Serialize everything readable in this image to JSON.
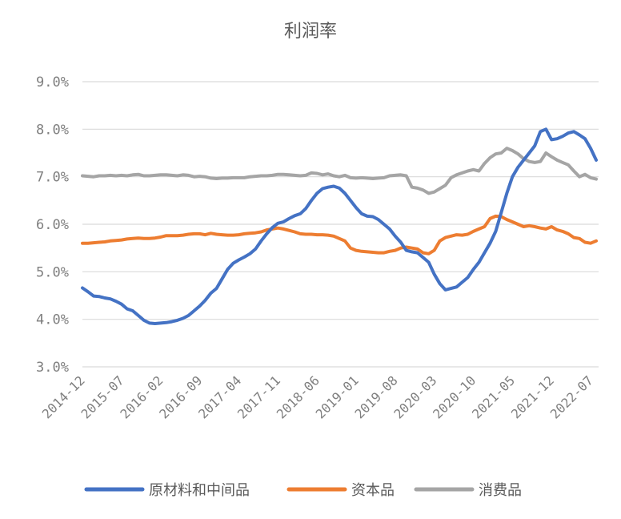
{
  "chart_data": {
    "type": "line",
    "title": "利润率",
    "xlabel": "",
    "ylabel": "",
    "ylim": [
      3.0,
      9.0
    ],
    "yticks": [
      "3.0%",
      "4.0%",
      "5.0%",
      "6.0%",
      "7.0%",
      "8.0%",
      "9.0%"
    ],
    "ytick_values": [
      3,
      4,
      5,
      6,
      7,
      8,
      9
    ],
    "grid": true,
    "legend_position": "bottom",
    "x_tick_labels": [
      "2014-12",
      "2015-07",
      "2016-02",
      "2016-09",
      "2017-04",
      "2017-11",
      "2018-06",
      "2019-01",
      "2019-08",
      "2020-03",
      "2020-10",
      "2021-05",
      "2021-12",
      "2022-07"
    ],
    "x_start": "2014-12",
    "x_end": "2022-08",
    "series": [
      {
        "name": "原材料和中间品",
        "color": "#4472C4",
        "values": [
          4.66,
          4.58,
          4.49,
          4.48,
          4.45,
          4.43,
          4.38,
          4.32,
          4.22,
          4.18,
          4.08,
          3.98,
          3.92,
          3.91,
          3.92,
          3.93,
          3.95,
          3.98,
          4.02,
          4.08,
          4.18,
          4.28,
          4.4,
          4.55,
          4.65,
          4.85,
          5.05,
          5.18,
          5.25,
          5.31,
          5.38,
          5.48,
          5.65,
          5.8,
          5.93,
          6.02,
          6.05,
          6.12,
          6.18,
          6.22,
          6.33,
          6.5,
          6.65,
          6.75,
          6.78,
          6.8,
          6.76,
          6.65,
          6.5,
          6.35,
          6.22,
          6.17,
          6.16,
          6.1,
          6.0,
          5.9,
          5.75,
          5.62,
          5.45,
          5.42,
          5.4,
          5.3,
          5.2,
          4.95,
          4.75,
          4.62,
          4.65,
          4.68,
          4.78,
          4.88,
          5.05,
          5.2,
          5.4,
          5.6,
          5.85,
          6.25,
          6.65,
          7.0,
          7.2,
          7.35,
          7.5,
          7.65,
          7.95,
          8.0,
          7.78,
          7.8,
          7.85,
          7.92,
          7.95,
          7.88,
          7.8,
          7.6,
          7.35
        ]
      },
      {
        "name": "资本品",
        "color": "#ED7D31",
        "values": [
          5.6,
          5.6,
          5.61,
          5.62,
          5.63,
          5.65,
          5.66,
          5.67,
          5.69,
          5.7,
          5.71,
          5.7,
          5.7,
          5.71,
          5.73,
          5.76,
          5.76,
          5.76,
          5.77,
          5.79,
          5.8,
          5.8,
          5.78,
          5.81,
          5.79,
          5.78,
          5.77,
          5.77,
          5.78,
          5.8,
          5.81,
          5.82,
          5.84,
          5.88,
          5.9,
          5.92,
          5.9,
          5.87,
          5.84,
          5.8,
          5.79,
          5.79,
          5.78,
          5.78,
          5.77,
          5.75,
          5.7,
          5.65,
          5.5,
          5.45,
          5.43,
          5.42,
          5.41,
          5.4,
          5.4,
          5.43,
          5.45,
          5.5,
          5.52,
          5.5,
          5.48,
          5.4,
          5.38,
          5.45,
          5.65,
          5.72,
          5.75,
          5.78,
          5.77,
          5.79,
          5.85,
          5.9,
          5.95,
          6.12,
          6.17,
          6.16,
          6.1,
          6.05,
          6.0,
          5.95,
          5.97,
          5.95,
          5.92,
          5.9,
          5.95,
          5.88,
          5.85,
          5.8,
          5.72,
          5.7,
          5.62,
          5.6,
          5.65
        ]
      },
      {
        "name": "消费品",
        "color": "#A5A5A5",
        "values": [
          7.02,
          7.01,
          7.0,
          7.02,
          7.02,
          7.03,
          7.02,
          7.03,
          7.02,
          7.04,
          7.05,
          7.02,
          7.02,
          7.03,
          7.04,
          7.04,
          7.03,
          7.02,
          7.04,
          7.03,
          7.0,
          7.01,
          7.0,
          6.97,
          6.96,
          6.97,
          6.97,
          6.98,
          6.98,
          6.98,
          7.0,
          7.01,
          7.02,
          7.02,
          7.03,
          7.05,
          7.05,
          7.04,
          7.03,
          7.02,
          7.03,
          7.08,
          7.07,
          7.04,
          7.06,
          7.02,
          7.0,
          7.03,
          6.98,
          6.97,
          6.98,
          6.97,
          6.96,
          6.97,
          6.98,
          7.02,
          7.03,
          7.04,
          7.02,
          6.78,
          6.76,
          6.72,
          6.65,
          6.68,
          6.75,
          6.82,
          6.98,
          7.04,
          7.08,
          7.12,
          7.15,
          7.12,
          7.28,
          7.4,
          7.48,
          7.5,
          7.6,
          7.55,
          7.48,
          7.38,
          7.32,
          7.3,
          7.32,
          7.5,
          7.42,
          7.35,
          7.3,
          7.25,
          7.12,
          7.0,
          7.05,
          6.98,
          6.95
        ]
      }
    ]
  }
}
